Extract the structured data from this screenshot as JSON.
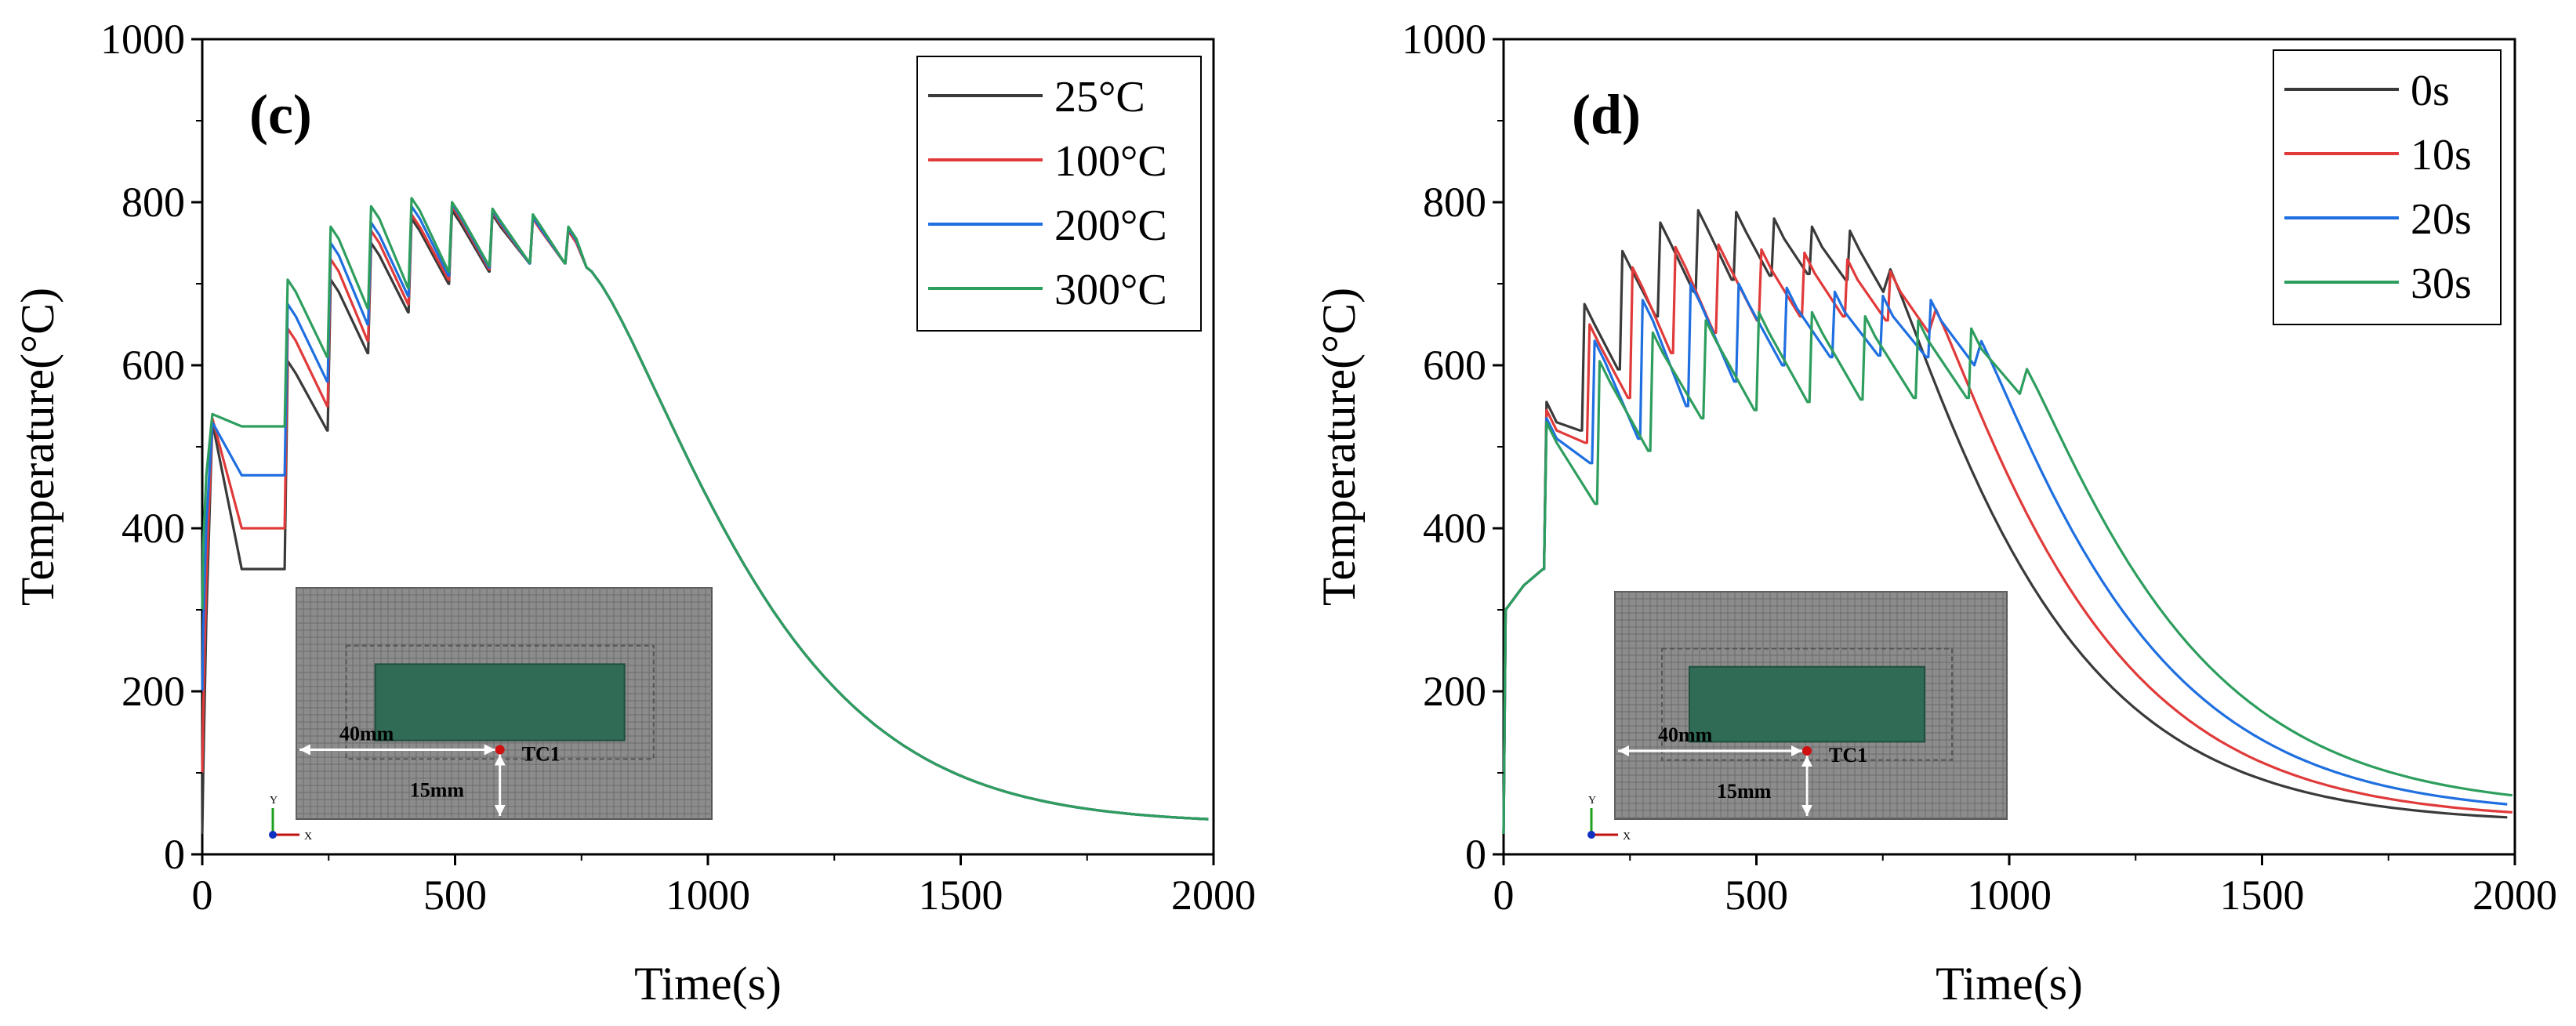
{
  "colors": {
    "black": "#3a3a3a",
    "red": "#e03a3a",
    "blue": "#1f6fe0",
    "green": "#2e9e5e",
    "mesh_bg": "#8c8c8c",
    "mesh_line": "#6b6b6b",
    "weld_region": "#2f6b55",
    "tc_marker": "#d01010"
  },
  "chart_data": [
    {
      "panel": "(c)",
      "type": "line",
      "xlabel": "Time(s)",
      "ylabel": "Temperature(°C)",
      "xlim": [
        0,
        2000
      ],
      "ylim": [
        0,
        1000
      ],
      "xticks": [
        "0",
        "500",
        "1000",
        "1500",
        "2000"
      ],
      "yticks": [
        "0",
        "200",
        "400",
        "600",
        "800",
        "1000"
      ],
      "legend_position": "top-right",
      "inset": {
        "dim1": "40mm",
        "dim2": "15mm",
        "marker": "TC1",
        "axis_y": "Y",
        "axis_x": "X"
      },
      "series": [
        {
          "name": "25°C",
          "color_key": "black",
          "preheat": 25,
          "base_levels": [
            350,
            520,
            615,
            665,
            700,
            715,
            725,
            725,
            720
          ],
          "peaks": [
            530,
            605,
            705,
            750,
            780,
            790,
            785,
            780,
            765
          ]
        },
        {
          "name": "100°C",
          "color_key": "red",
          "preheat": 100,
          "base_levels": [
            400,
            550,
            630,
            675,
            705,
            718,
            725,
            725,
            720
          ],
          "peaks": [
            535,
            645,
            730,
            765,
            785,
            795,
            788,
            780,
            765
          ]
        },
        {
          "name": "200°C",
          "color_key": "blue",
          "preheat": 200,
          "base_levels": [
            465,
            580,
            650,
            685,
            710,
            720,
            725,
            725,
            720
          ],
          "peaks": [
            530,
            675,
            750,
            775,
            795,
            798,
            790,
            782,
            768
          ]
        },
        {
          "name": "300°C",
          "color_key": "green",
          "preheat": 300,
          "base_levels": [
            525,
            610,
            670,
            695,
            715,
            722,
            726,
            725,
            720
          ],
          "peaks": [
            540,
            705,
            770,
            795,
            805,
            800,
            792,
            785,
            770
          ]
        }
      ],
      "cooling": {
        "start_time": 760,
        "start_temp": 720,
        "end_time": 2000,
        "end_temp": 38
      }
    },
    {
      "panel": "(d)",
      "type": "line",
      "xlabel": "Time(s)",
      "ylabel": "Temperature(°C)",
      "xlim": [
        0,
        2000
      ],
      "ylim": [
        0,
        1000
      ],
      "xticks": [
        "0",
        "500",
        "1000",
        "1500",
        "2000"
      ],
      "yticks": [
        "0",
        "200",
        "400",
        "600",
        "800",
        "1000"
      ],
      "legend_position": "top-right",
      "inset": {
        "dim1": "40mm",
        "dim2": "15mm",
        "marker": "TC1",
        "axis_y": "Y",
        "axis_x": "X"
      },
      "series": [
        {
          "name": "0s",
          "color_key": "black",
          "interval": 0,
          "peaks": [
            555,
            675,
            740,
            775,
            790,
            788,
            780,
            770,
            765
          ],
          "troughs": [
            520,
            595,
            660,
            690,
            705,
            710,
            712,
            705,
            690
          ],
          "end_temp": 38
        },
        {
          "name": "10s",
          "color_key": "red",
          "interval": 10,
          "peaks": [
            545,
            650,
            720,
            745,
            748,
            742,
            738,
            730,
            715
          ],
          "troughs": [
            505,
            560,
            615,
            640,
            655,
            660,
            660,
            655,
            640
          ],
          "end_temp": 42
        },
        {
          "name": "20s",
          "color_key": "blue",
          "interval": 20,
          "peaks": [
            535,
            630,
            680,
            700,
            700,
            695,
            690,
            685,
            680
          ],
          "troughs": [
            480,
            510,
            550,
            580,
            600,
            610,
            612,
            610,
            600
          ],
          "end_temp": 48
        },
        {
          "name": "30s",
          "color_key": "green",
          "interval": 30,
          "peaks": [
            530,
            605,
            640,
            655,
            665,
            665,
            660,
            655,
            645
          ],
          "troughs": [
            430,
            495,
            535,
            545,
            555,
            558,
            560,
            560,
            565
          ],
          "end_temp": 55
        }
      ]
    }
  ]
}
